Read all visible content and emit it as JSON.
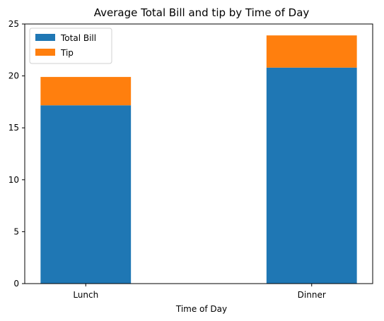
{
  "chart_data": {
    "type": "bar",
    "stacked": true,
    "title": "Average Total Bill and tip by Time of Day",
    "xlabel": "Time of Day",
    "ylabel": "",
    "categories": [
      "Lunch",
      "Dinner"
    ],
    "series": [
      {
        "name": "Total Bill",
        "values": [
          17.17,
          20.8
        ],
        "color": "#1f77b4"
      },
      {
        "name": "Tip",
        "values": [
          2.73,
          3.1
        ],
        "color": "#ff7f0e"
      }
    ],
    "ylim": [
      0,
      25
    ],
    "yticks": [
      0,
      5,
      10,
      15,
      20,
      25
    ],
    "grid": false,
    "legend_position": "top-left"
  }
}
